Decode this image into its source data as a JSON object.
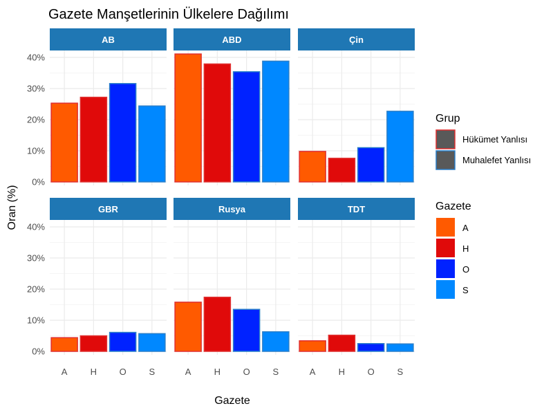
{
  "chart_data": {
    "type": "bar",
    "title": "Gazete Manşetlerinin Ülkelere Dağılımı",
    "xlabel": "Gazete",
    "ylabel": "Oran (%)",
    "ylim": [
      0,
      0.43
    ],
    "y_ticks": [
      "0%",
      "10%",
      "20%",
      "30%",
      "40%"
    ],
    "y_tick_values": [
      0,
      0.1,
      0.2,
      0.3,
      0.4
    ],
    "grid": true,
    "categories": [
      "A",
      "H",
      "O",
      "S"
    ],
    "facets": [
      {
        "name": "AB",
        "values": [
          0.253,
          0.272,
          0.316,
          0.244
        ]
      },
      {
        "name": "ABD",
        "values": [
          0.411,
          0.379,
          0.354,
          0.388
        ]
      },
      {
        "name": "Çin",
        "values": [
          0.098,
          0.076,
          0.11,
          0.227
        ]
      },
      {
        "name": "GBR",
        "values": [
          0.044,
          0.05,
          0.061,
          0.057
        ]
      },
      {
        "name": "Rusya",
        "values": [
          0.158,
          0.174,
          0.135,
          0.063
        ]
      },
      {
        "name": "TDT",
        "values": [
          0.034,
          0.052,
          0.025,
          0.024
        ]
      }
    ],
    "fill_legend": {
      "title": "Gazete",
      "items": [
        {
          "label": "A",
          "color": "#ff5a00"
        },
        {
          "label": "H",
          "color": "#e00a0a"
        },
        {
          "label": "O",
          "color": "#0022ff"
        },
        {
          "label": "S",
          "color": "#0088ff"
        }
      ]
    },
    "group_legend": {
      "title": "Grup",
      "items": [
        {
          "label": "Hükümet Yanlısı",
          "outline": "#e03030",
          "fill": "#595959"
        },
        {
          "label": "Muhalefet Yanlısı",
          "outline": "#2a7fc9",
          "fill": "#595959"
        }
      ]
    },
    "group_of_category": {
      "A": "#e03030",
      "H": "#e03030",
      "O": "#2a7fc9",
      "S": "#2a7fc9"
    },
    "strip_color": "#1f77b4",
    "legend_position": "right"
  }
}
